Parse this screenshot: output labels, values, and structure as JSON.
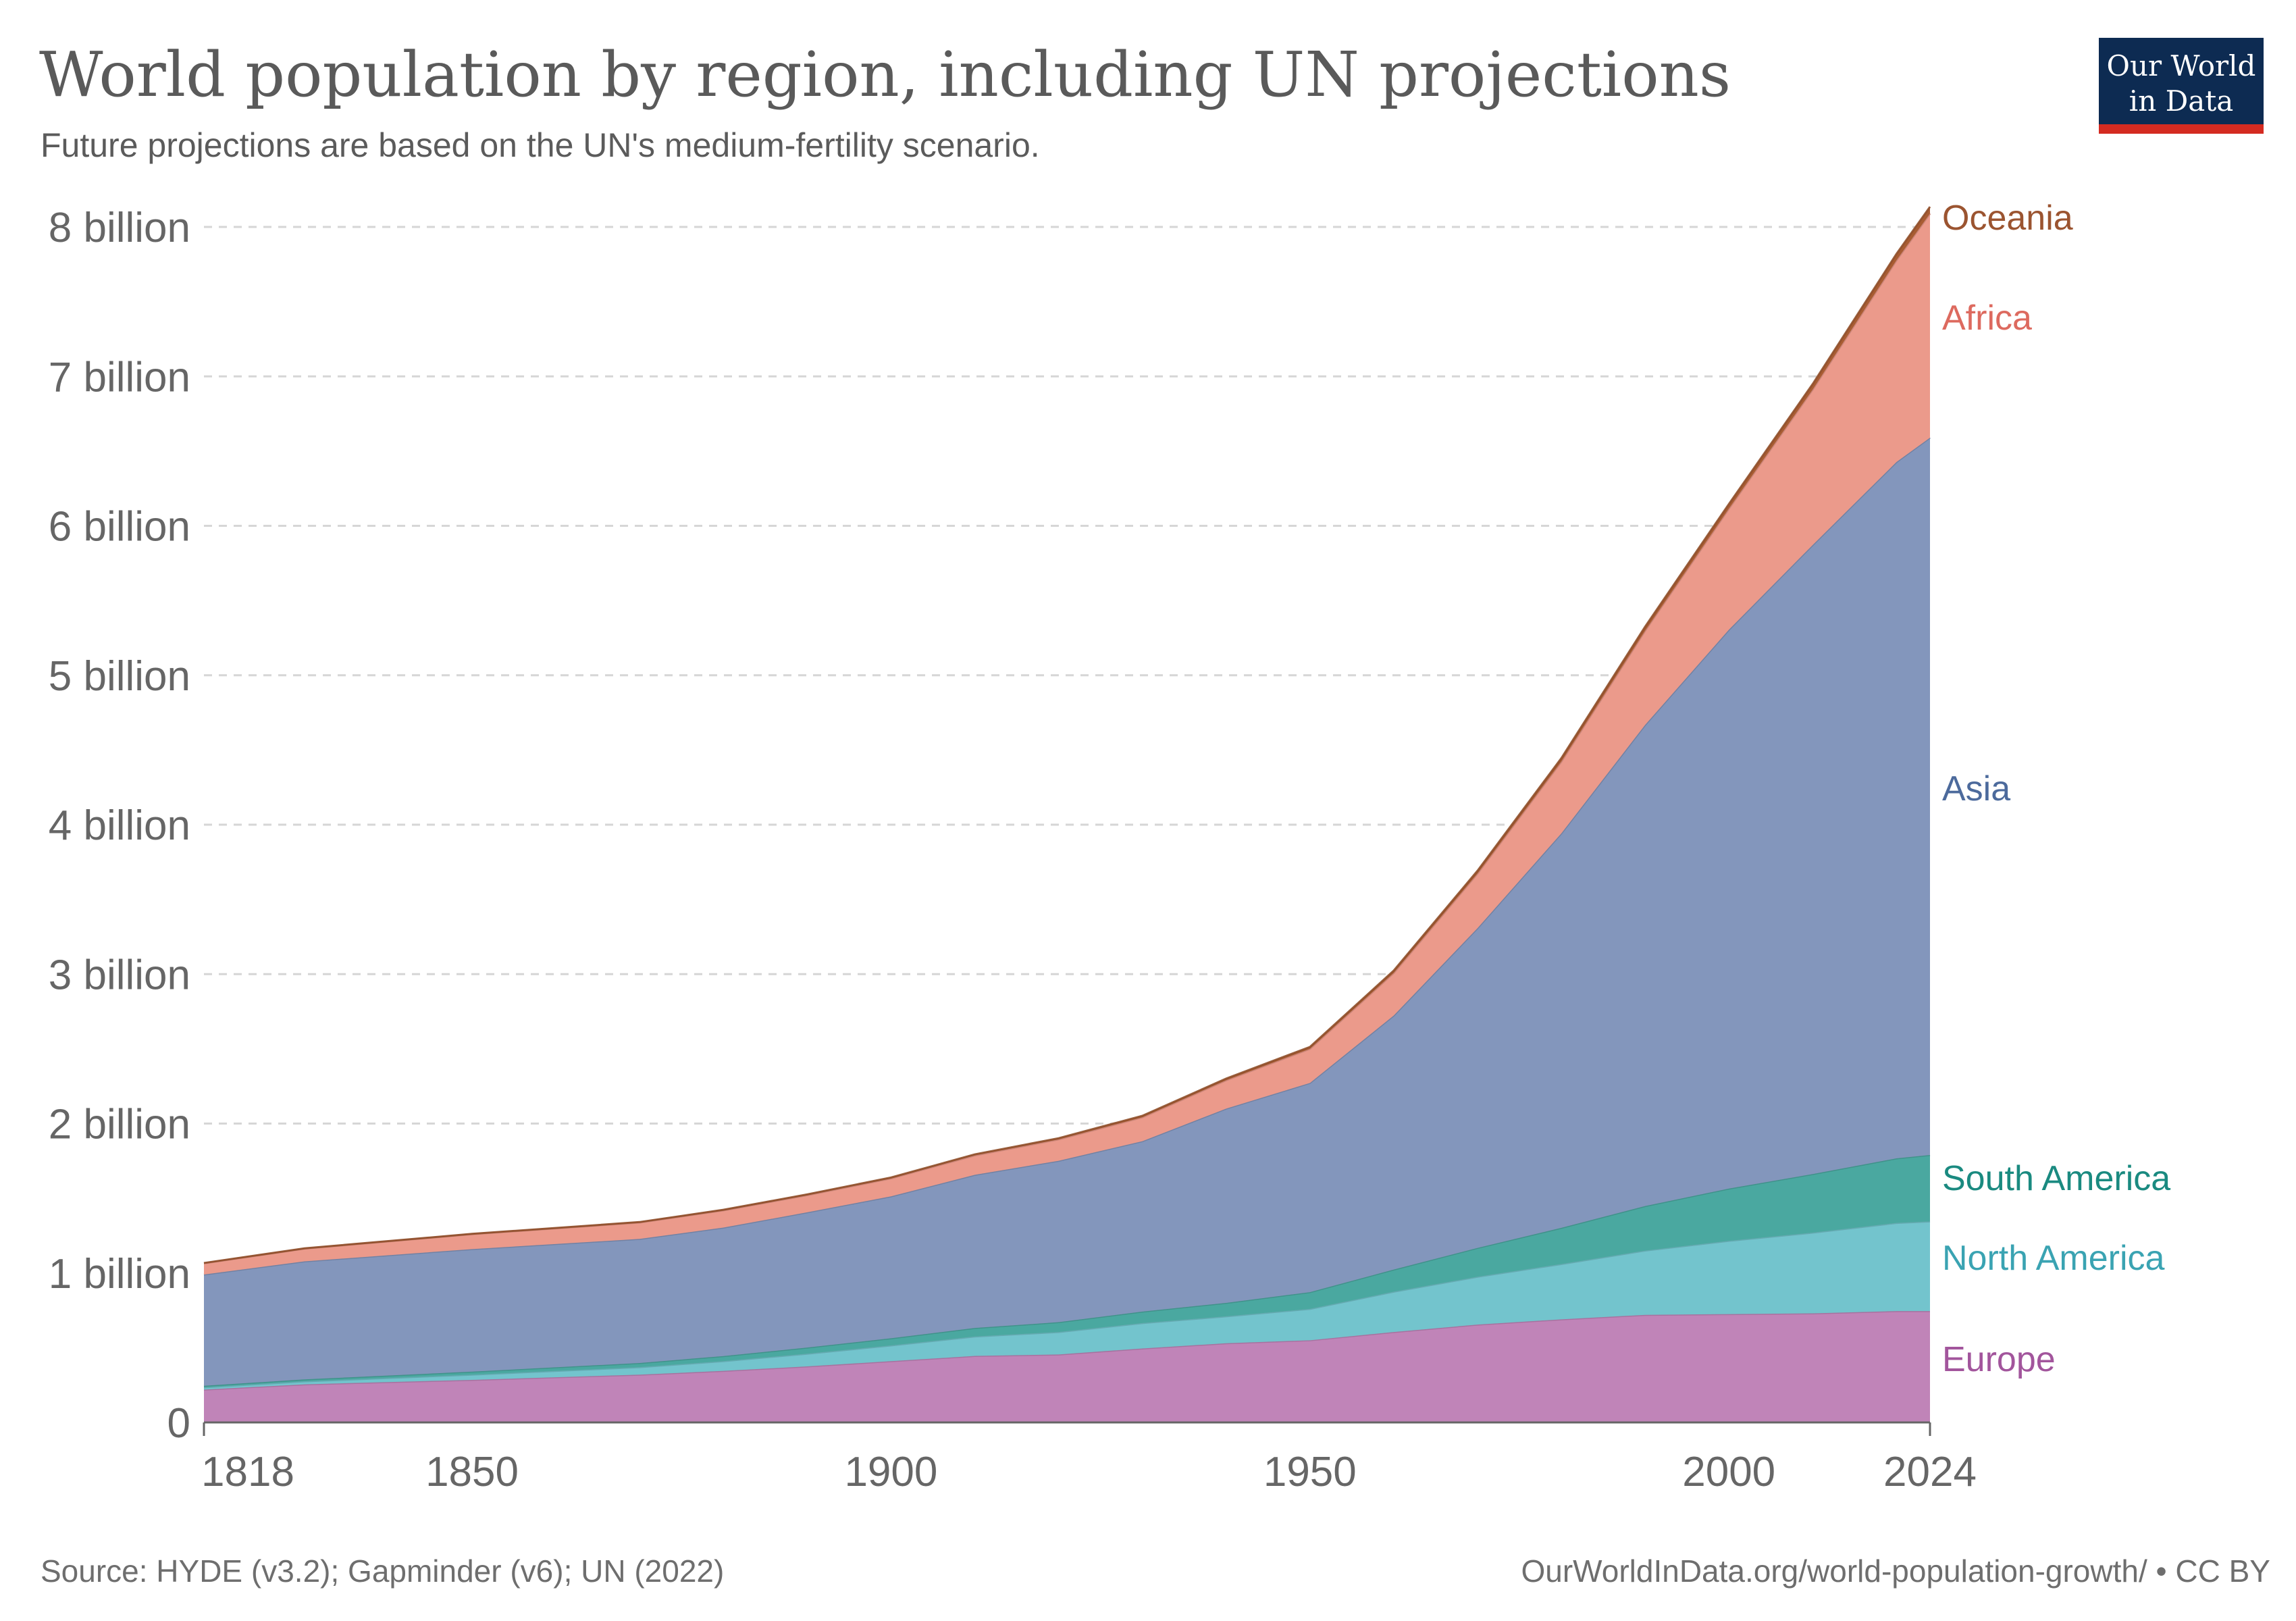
{
  "header": {
    "title": "World population by region, including UN projections",
    "subtitle": "Future projections are based on the UN's medium-fertility scenario."
  },
  "logo": {
    "line1": "Our World",
    "line2": "in Data",
    "bg_color": "#0d2b52",
    "bar_color": "#d42b21"
  },
  "footer": {
    "source": "Source: HYDE (v3.2); Gapminder (v6); UN (2022)",
    "credit": "OurWorldInData.org/world-population-growth/ • CC BY"
  },
  "chart_data": {
    "type": "area",
    "stacked": true,
    "title": "World population by region, including UN projections",
    "subtitle": "Future projections are based on the UN's medium-fertility scenario.",
    "xlabel": "",
    "ylabel": "",
    "xlim": [
      1818,
      2024
    ],
    "ylim": [
      0,
      8000000000
    ],
    "x_ticks": [
      "1818",
      "1850",
      "1900",
      "1950",
      "2000",
      "2024"
    ],
    "x_tick_values": [
      1818,
      1850,
      1900,
      1950,
      2000,
      2024
    ],
    "y_ticks": [
      "0",
      "1 billion",
      "2 billion",
      "3 billion",
      "4 billion",
      "5 billion",
      "6 billion",
      "7 billion",
      "8 billion"
    ],
    "y_tick_values": [
      0,
      1000000000,
      2000000000,
      3000000000,
      4000000000,
      5000000000,
      6000000000,
      7000000000,
      8000000000
    ],
    "grid": true,
    "legend": "right-side direct labels",
    "x": [
      1818,
      1830,
      1850,
      1870,
      1880,
      1890,
      1900,
      1910,
      1920,
      1930,
      1940,
      1950,
      1960,
      1970,
      1980,
      1990,
      2000,
      2010,
      2020,
      2024
    ],
    "series": [
      {
        "name": "Europe",
        "color": "#c084b8",
        "label_color": "#a2559c",
        "values": [
          220000000,
          255000000,
          285000000,
          320000000,
          345000000,
          375000000,
          410000000,
          445000000,
          455000000,
          495000000,
          530000000,
          550000000,
          605000000,
          655000000,
          690000000,
          720000000,
          725000000,
          730000000,
          745000000,
          745000000
        ]
      },
      {
        "name": "North America",
        "color": "#73c4cd",
        "label_color": "#3aa3b2",
        "values": [
          15000000,
          20000000,
          35000000,
          50000000,
          65000000,
          85000000,
          105000000,
          130000000,
          150000000,
          170000000,
          180000000,
          210000000,
          270000000,
          320000000,
          370000000,
          430000000,
          490000000,
          540000000,
          590000000,
          600000000
        ]
      },
      {
        "name": "South America",
        "color": "#4aa8a0",
        "label_color": "#1a8a80",
        "values": [
          10000000,
          13000000,
          20000000,
          28000000,
          34000000,
          41000000,
          48000000,
          57000000,
          66000000,
          77000000,
          90000000,
          112000000,
          148000000,
          193000000,
          242000000,
          298000000,
          350000000,
          392000000,
          432000000,
          445000000
        ]
      },
      {
        "name": "Asia",
        "color": "#8396bc",
        "label_color": "#4c6a9c",
        "values": [
          745000000,
          790000000,
          820000000,
          830000000,
          860000000,
          905000000,
          950000000,
          1025000000,
          1080000000,
          1140000000,
          1300000000,
          1400000000,
          1700000000,
          2140000000,
          2640000000,
          3220000000,
          3740000000,
          4210000000,
          4660000000,
          4800000000
        ]
      },
      {
        "name": "Africa",
        "color": "#eb9a8b",
        "label_color": "#dd6a5f",
        "values": [
          75000000,
          85000000,
          100000000,
          110000000,
          115000000,
          115000000,
          120000000,
          130000000,
          143000000,
          160000000,
          190000000,
          228000000,
          285000000,
          365000000,
          480000000,
          630000000,
          810000000,
          1040000000,
          1350000000,
          1500000000
        ]
      },
      {
        "name": "Oceania",
        "color": "#a85c32",
        "label_color": "#9b5430",
        "values": [
          2000000,
          2000000,
          2000000,
          3000000,
          4000000,
          5000000,
          6000000,
          7000000,
          8000000,
          10000000,
          11000000,
          13000000,
          16000000,
          19000000,
          23000000,
          27000000,
          31000000,
          37000000,
          43000000,
          45000000
        ]
      }
    ]
  }
}
